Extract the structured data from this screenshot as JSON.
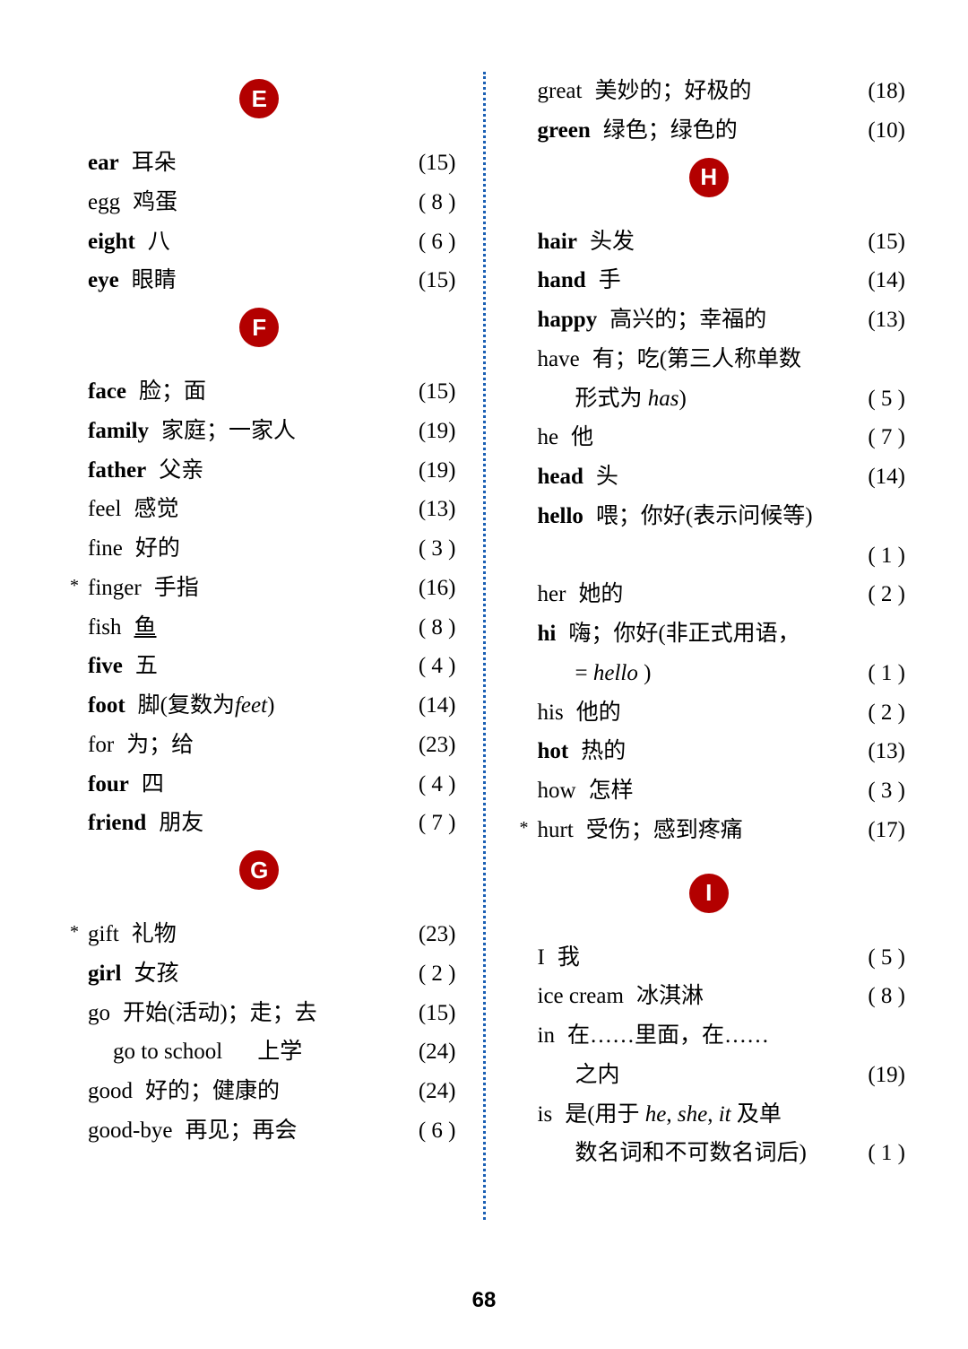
{
  "page_number": "68",
  "badge_bg": "#b30000",
  "badge_fg": "#ffffff",
  "divider_color": "#1a5fb4",
  "left": [
    {
      "type": "badge",
      "letter": "E"
    },
    {
      "type": "entry",
      "word": "ear",
      "bold": true,
      "def": "耳朵",
      "pg": "(15)"
    },
    {
      "type": "entry",
      "word": "egg",
      "def": "鸡蛋",
      "pg": "( 8 )"
    },
    {
      "type": "entry",
      "word": "eight",
      "bold": true,
      "def": "八",
      "pg": "( 6 )"
    },
    {
      "type": "entry",
      "word": "eye",
      "bold": true,
      "def": "眼睛",
      "pg": "(15)"
    },
    {
      "type": "badge",
      "letter": "F"
    },
    {
      "type": "entry",
      "word": "face",
      "bold": true,
      "def": "脸；面",
      "pg": "(15)"
    },
    {
      "type": "entry",
      "word": "family",
      "bold": true,
      "def": "家庭；一家人",
      "pg": "(19)"
    },
    {
      "type": "entry",
      "word": "father",
      "bold": true,
      "def": "父亲",
      "pg": "(19)"
    },
    {
      "type": "entry",
      "word": "feel",
      "def": "感觉",
      "pg": "(13)"
    },
    {
      "type": "entry",
      "word": "fine",
      "def": "好的",
      "pg": "( 3 )"
    },
    {
      "type": "entry",
      "word": "finger",
      "star": true,
      "def": "手指",
      "pg": "(16)"
    },
    {
      "type": "entry",
      "word": "fish",
      "def_html": "<span class='underline'>鱼</span>",
      "pg": "( 8 )"
    },
    {
      "type": "entry",
      "word": "five",
      "bold": true,
      "def": "五",
      "pg": "( 4 )"
    },
    {
      "type": "entry",
      "word": "foot",
      "bold": true,
      "def_html": "脚(复数为<span class='italic'>feet</span>)",
      "pg": "(14)"
    },
    {
      "type": "entry",
      "word": "for",
      "def": "为；给",
      "pg": "(23)"
    },
    {
      "type": "entry",
      "word": "four",
      "bold": true,
      "def": "四",
      "pg": "( 4 )"
    },
    {
      "type": "entry",
      "word": "friend",
      "bold": true,
      "def": "朋友",
      "pg": "( 7 )"
    },
    {
      "type": "badge",
      "letter": "G"
    },
    {
      "type": "entry",
      "word": "gift",
      "star": true,
      "def": "礼物",
      "pg": "(23)"
    },
    {
      "type": "entry",
      "word": "girl",
      "bold": true,
      "def": "女孩",
      "pg": "( 2 )"
    },
    {
      "type": "entry",
      "word": "go",
      "def": "开始(活动)；走；去",
      "pg": "(15)"
    },
    {
      "type": "entry",
      "indent": true,
      "word": "go to school",
      "def": "　上学",
      "pg": "(24)"
    },
    {
      "type": "entry",
      "word": "good",
      "def": "好的；健康的",
      "pg": "(24)"
    },
    {
      "type": "entry",
      "word": "good-bye",
      "def": "再见；再会",
      "pg": "( 6 )"
    }
  ],
  "right": [
    {
      "type": "entry",
      "word": "great",
      "def": "美妙的；好极的",
      "pg": "(18)"
    },
    {
      "type": "entry",
      "word": "green",
      "bold": true,
      "def": "绿色；绿色的",
      "pg": "(10)"
    },
    {
      "type": "badge",
      "letter": "H"
    },
    {
      "type": "entry",
      "word": "hair",
      "bold": true,
      "def": "头发",
      "pg": "(15)"
    },
    {
      "type": "entry",
      "word": "hand",
      "bold": true,
      "def": "手",
      "pg": "(14)"
    },
    {
      "type": "entry",
      "word": "happy",
      "bold": true,
      "def": "高兴的；幸福的",
      "pg": "(13)"
    },
    {
      "type": "entry",
      "word": "have",
      "def": "有；吃(第三人称单数"
    },
    {
      "type": "cont",
      "def_html": "形式为<span class='italic'> has</span>)",
      "pg": "( 5 )"
    },
    {
      "type": "entry",
      "word": "he",
      "def": "他",
      "pg": "( 7 )"
    },
    {
      "type": "entry",
      "word": "head",
      "bold": true,
      "def": "头",
      "pg": "(14)"
    },
    {
      "type": "entry",
      "word": "hello",
      "bold": true,
      "def": "喂；你好(表示问候等)"
    },
    {
      "type": "cont",
      "def": "",
      "pg": "( 1 )"
    },
    {
      "type": "entry",
      "word": "her",
      "def": "她的",
      "pg": "( 2 )"
    },
    {
      "type": "entry",
      "word": "hi",
      "bold": true,
      "def": "嗨；你好(非正式用语，"
    },
    {
      "type": "cont",
      "def_html": "=<span class='italic'> hello </span>)",
      "pg": "( 1 )"
    },
    {
      "type": "entry",
      "word": "his",
      "def": "他的",
      "pg": "( 2 )"
    },
    {
      "type": "entry",
      "word": "hot",
      "bold": true,
      "def": "热的",
      "pg": "(13)"
    },
    {
      "type": "entry",
      "word": "how",
      "def": "怎样",
      "pg": "( 3 )"
    },
    {
      "type": "entry",
      "word": "hurt",
      "star": true,
      "def": "受伤；感到疼痛",
      "pg": "(17)"
    },
    {
      "type": "spacer"
    },
    {
      "type": "badge",
      "letter": "I"
    },
    {
      "type": "entry",
      "word": "I",
      "def": "我",
      "pg": "( 5 )"
    },
    {
      "type": "entry",
      "word": "ice cream",
      "def": "冰淇淋",
      "pg": "( 8 )"
    },
    {
      "type": "entry",
      "word": "in",
      "def": "在……里面，在……"
    },
    {
      "type": "cont",
      "def": "之内",
      "pg": "(19)"
    },
    {
      "type": "entry",
      "word": "is",
      "def_html": "是(用于<span class='italic'> he</span>,<span class='italic'> she</span>,<span class='italic'> it</span> 及单"
    },
    {
      "type": "cont",
      "def": "数名词和不可数名词后)",
      "pg": "( 1 )"
    }
  ]
}
